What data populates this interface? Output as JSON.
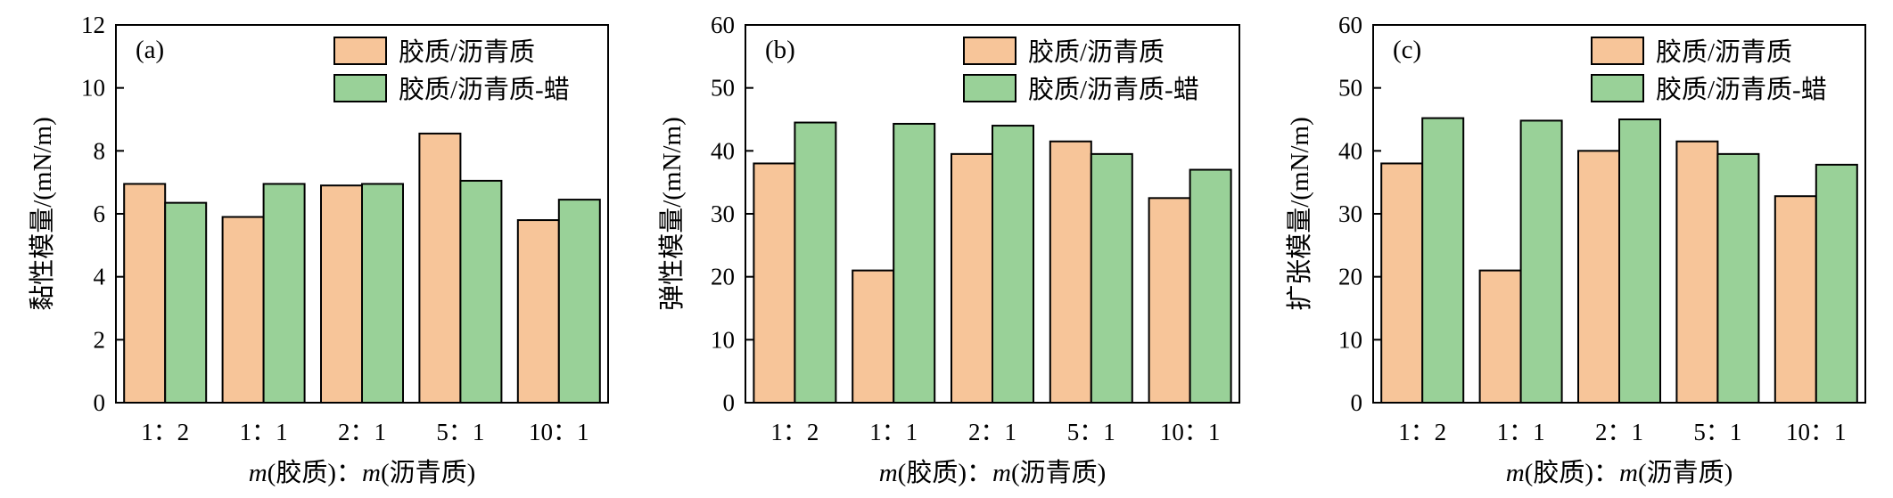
{
  "figure": {
    "series_names": [
      "胶质/沥青质",
      "胶质/沥青质-蜡"
    ],
    "colors": {
      "series_1": "#F7C599",
      "series_2": "#99D198"
    },
    "xlabel": {
      "var1": "m",
      "mid1": "(胶质)：",
      "var2": "m",
      "mid2": "(沥青质)"
    }
  },
  "chart_data": [
    {
      "type": "bar",
      "panel_tag": "(a)",
      "categories": [
        "1：2",
        "1：1",
        "2：1",
        "5：1",
        "10：1"
      ],
      "series": [
        {
          "name": "胶质/沥青质",
          "values": [
            6.95,
            5.9,
            6.9,
            8.55,
            5.8
          ]
        },
        {
          "name": "胶质/沥青质-蜡",
          "values": [
            6.35,
            6.95,
            6.95,
            7.05,
            6.45
          ]
        }
      ],
      "ylabel": "黏性模量/(mN/m)",
      "xlabel": "m(胶质)：m(沥青质)",
      "ylim": [
        0,
        12
      ],
      "yticks": [
        0,
        2,
        4,
        6,
        8,
        10,
        12
      ],
      "legend": "top-right",
      "grid": false
    },
    {
      "type": "bar",
      "panel_tag": "(b)",
      "categories": [
        "1：2",
        "1：1",
        "2：1",
        "5：1",
        "10：1"
      ],
      "series": [
        {
          "name": "胶质/沥青质",
          "values": [
            38,
            21,
            39.5,
            41.5,
            32.5
          ]
        },
        {
          "name": "胶质/沥青质-蜡",
          "values": [
            44.5,
            44.3,
            44,
            39.5,
            37
          ]
        }
      ],
      "ylabel": "弹性模量/(mN/m)",
      "xlabel": "m(胶质)：m(沥青质)",
      "ylim": [
        0,
        60
      ],
      "yticks": [
        0,
        10,
        20,
        30,
        40,
        50,
        60
      ],
      "legend": "top-right",
      "grid": false
    },
    {
      "type": "bar",
      "panel_tag": "(c)",
      "categories": [
        "1：2",
        "1：1",
        "2：1",
        "5：1",
        "10：1"
      ],
      "series": [
        {
          "name": "胶质/沥青质",
          "values": [
            38,
            21,
            40,
            41.5,
            32.8
          ]
        },
        {
          "name": "胶质/沥青质-蜡",
          "values": [
            45.2,
            44.8,
            45,
            39.5,
            37.8
          ]
        }
      ],
      "ylabel": "扩张模量/(mN/m)",
      "xlabel": "m(胶质)：m(沥青质)",
      "ylim": [
        0,
        60
      ],
      "yticks": [
        0,
        10,
        20,
        30,
        40,
        50,
        60
      ],
      "legend": "top-right",
      "grid": false
    }
  ]
}
